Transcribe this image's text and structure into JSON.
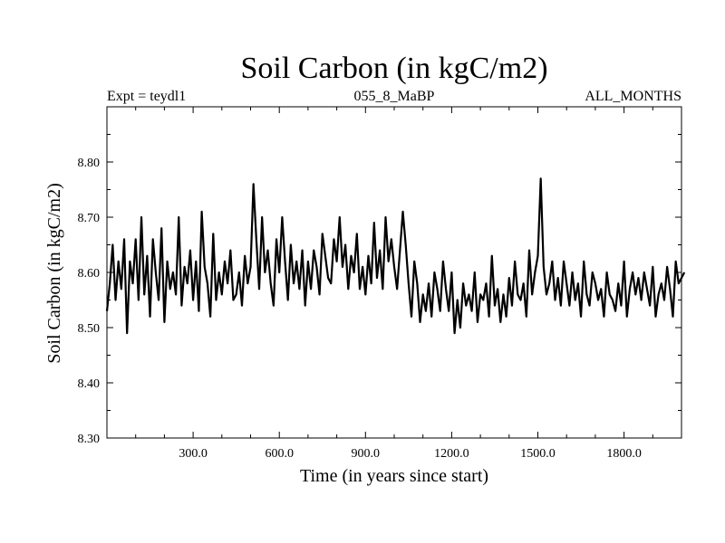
{
  "chart_data": {
    "type": "line",
    "title": "Soil Carbon (in kgC/m2)",
    "subtitle_left": "Expt = teydl1",
    "subtitle_center": "055_8_MaBP",
    "subtitle_right": "ALL_MONTHS",
    "xlabel": "Time (in years since start)",
    "ylabel": "Soil Carbon (in kgC/m2)",
    "xlim": [
      0,
      2000
    ],
    "ylim": [
      8.3,
      8.9
    ],
    "xticks": [
      300,
      600,
      900,
      1200,
      1500,
      1800
    ],
    "xtick_labels": [
      "300.0",
      "600.0",
      "900.0",
      "1200.0",
      "1500.0",
      "1800.0"
    ],
    "yticks": [
      8.3,
      8.4,
      8.5,
      8.6,
      8.7,
      8.8
    ],
    "ytick_labels": [
      "8.30",
      "8.40",
      "8.50",
      "8.60",
      "8.70",
      "8.80"
    ],
    "grid": false,
    "series": [
      {
        "name": "soil_carbon",
        "color": "#000000",
        "x_start": 0,
        "x_step": 10,
        "values": [
          8.53,
          8.58,
          8.65,
          8.55,
          8.62,
          8.57,
          8.66,
          8.49,
          8.62,
          8.58,
          8.66,
          8.55,
          8.7,
          8.56,
          8.63,
          8.52,
          8.66,
          8.6,
          8.55,
          8.68,
          8.51,
          8.62,
          8.57,
          8.6,
          8.56,
          8.7,
          8.54,
          8.61,
          8.58,
          8.64,
          8.55,
          8.62,
          8.53,
          8.71,
          8.61,
          8.58,
          8.52,
          8.67,
          8.55,
          8.6,
          8.56,
          8.62,
          8.58,
          8.64,
          8.55,
          8.56,
          8.6,
          8.54,
          8.63,
          8.58,
          8.61,
          8.76,
          8.66,
          8.57,
          8.7,
          8.6,
          8.64,
          8.58,
          8.54,
          8.66,
          8.6,
          8.7,
          8.62,
          8.55,
          8.65,
          8.58,
          8.62,
          8.57,
          8.64,
          8.54,
          8.62,
          8.57,
          8.64,
          8.61,
          8.56,
          8.67,
          8.63,
          8.59,
          8.58,
          8.66,
          8.62,
          8.7,
          8.61,
          8.65,
          8.57,
          8.63,
          8.6,
          8.67,
          8.57,
          8.61,
          8.56,
          8.63,
          8.58,
          8.69,
          8.59,
          8.64,
          8.57,
          8.7,
          8.62,
          8.66,
          8.61,
          8.57,
          8.64,
          8.71,
          8.65,
          8.58,
          8.52,
          8.62,
          8.58,
          8.51,
          8.56,
          8.53,
          8.58,
          8.52,
          8.6,
          8.57,
          8.53,
          8.62,
          8.57,
          8.53,
          8.6,
          8.49,
          8.55,
          8.5,
          8.58,
          8.54,
          8.56,
          8.53,
          8.6,
          8.51,
          8.56,
          8.55,
          8.58,
          8.52,
          8.63,
          8.54,
          8.57,
          8.51,
          8.56,
          8.52,
          8.59,
          8.54,
          8.62,
          8.56,
          8.55,
          8.58,
          8.52,
          8.64,
          8.56,
          8.6,
          8.63,
          8.77,
          8.61,
          8.56,
          8.58,
          8.62,
          8.55,
          8.59,
          8.54,
          8.62,
          8.58,
          8.54,
          8.6,
          8.55,
          8.58,
          8.52,
          8.62,
          8.56,
          8.54,
          8.6,
          8.58,
          8.55,
          8.57,
          8.52,
          8.6,
          8.56,
          8.55,
          8.53,
          8.58,
          8.54,
          8.62,
          8.52,
          8.57,
          8.6,
          8.56,
          8.59,
          8.55,
          8.6,
          8.57,
          8.54,
          8.61,
          8.52,
          8.56,
          8.58,
          8.55,
          8.61,
          8.57,
          8.52,
          8.62,
          8.58,
          8.59,
          8.6
        ]
      }
    ]
  }
}
